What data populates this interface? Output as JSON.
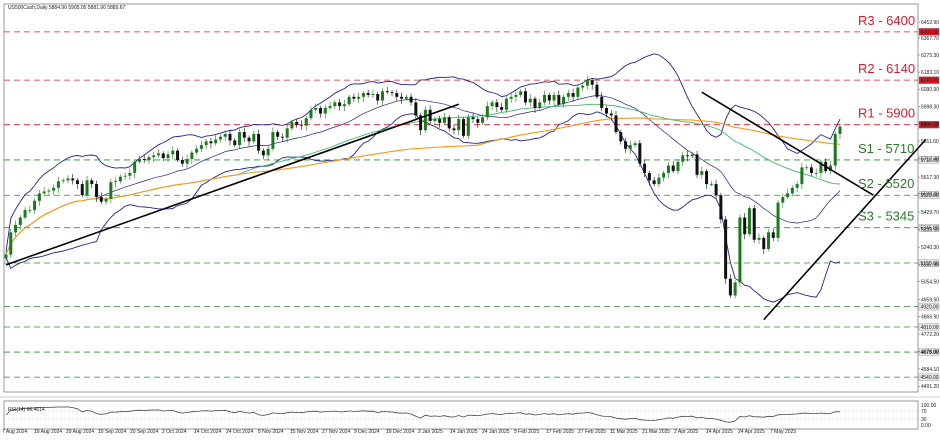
{
  "header": {
    "symbol_line": "US500Cash,Daily  5884.90 5905.05 5881.90 5889.67",
    "rsi_line": "RSI(14) 66.4614"
  },
  "colors": {
    "resistance": "#e0182b",
    "support_label": "#2a7a2a",
    "support_line": "#2f8a2f",
    "dashed_green": "#2f8a2f",
    "bull": "#1c7a1c",
    "bear": "#111111",
    "bollinger": "#22228a",
    "ma_orange": "#f39a1c",
    "ma_green": "#3fb86a",
    "trendline": "#000000",
    "rsi": "#444444"
  },
  "chart_data": [
    {
      "type": "candlestick",
      "series_name": "US500Cash, Daily",
      "ylim": [
        4460,
        6550
      ],
      "y_ticks": [
        "6452.90",
        "6367.70",
        "6275.30",
        "6183.10",
        "6090.90",
        "5998.30",
        "5904.70",
        "5811.60",
        "5717.40",
        "5617.30",
        "5529.20",
        "5429.70",
        "5335.50",
        "5240.30",
        "5147.90",
        "5054.50",
        "4959.50",
        "4866.90",
        "4772.20",
        "4678.00",
        "4584.10",
        "4491.20"
      ],
      "x_tick_labels": [
        "7 Aug 2024",
        "19 Aug 2024",
        "29 Aug 2024",
        "10 Sep 2024",
        "20 Sep 2024",
        "2 Oct 2024",
        "14 Oct 2024",
        "24 Oct 2024",
        "5 Nov 2024",
        "15 Nov 2024",
        "27 Nov 2024",
        "9 Dec 2024",
        "19 Dec 2024",
        "2 Jan 2025",
        "14 Jan 2025",
        "24 Jan 2025",
        "5 Feb 2025",
        "17 Feb 2025",
        "27 Feb 2025",
        "11 Mar 2025",
        "21 Mar 2025",
        "2 Apr 2025",
        "14 Apr 2025",
        "24 Apr 2025",
        "7 May 2025"
      ],
      "levels": [
        {
          "name": "R3 - 6400",
          "value": 6400,
          "kind": "resistance",
          "tag": "6400.00"
        },
        {
          "name": "R2 - 6140",
          "value": 6140,
          "kind": "resistance",
          "tag": "6140.00"
        },
        {
          "name": "R1 - 5900",
          "value": 5900,
          "kind": "resistance",
          "tag": "5900.00"
        },
        {
          "name": "S1 - 5710",
          "value": 5710,
          "kind": "support",
          "tag": "5710.00"
        },
        {
          "name": "S2 - 5520",
          "value": 5520,
          "kind": "support",
          "tag": "5520.00"
        },
        {
          "name": "S3 - 5345",
          "value": 5345,
          "kind": "support",
          "tag": "5345.00"
        },
        {
          "name": "",
          "value": 5155,
          "kind": "support",
          "tag": "5155.00"
        },
        {
          "name": "",
          "value": 4920,
          "kind": "support",
          "tag": "4920.00"
        },
        {
          "name": "",
          "value": 4810,
          "kind": "support",
          "tag": "4810.00"
        },
        {
          "name": "",
          "value": 4675,
          "kind": "support",
          "tag": "4675.00"
        },
        {
          "name": "",
          "value": 4540,
          "kind": "support",
          "tag": "4540.00"
        }
      ],
      "close": [
        5200,
        5320,
        5360,
        5400,
        5440,
        5440,
        5490,
        5530,
        5540,
        5545,
        5560,
        5595,
        5600,
        5610,
        5600,
        5580,
        5520,
        5600,
        5580,
        5510,
        5485,
        5500,
        5590,
        5595,
        5620,
        5625,
        5640,
        5700,
        5715,
        5710,
        5725,
        5735,
        5745,
        5720,
        5740,
        5760,
        5710,
        5690,
        5715,
        5750,
        5770,
        5790,
        5810,
        5800,
        5820,
        5835,
        5850,
        5815,
        5790,
        5860,
        5830,
        5810,
        5850,
        5760,
        5735,
        5770,
        5860,
        5835,
        5830,
        5880,
        5915,
        5900,
        5895,
        5935,
        5980,
        5990,
        5960,
        5990,
        6000,
        6020,
        6000,
        6010,
        6050,
        6040,
        6050,
        6070,
        6060,
        6065,
        6030,
        6080,
        6075,
        6070,
        6050,
        6040,
        6050,
        6020,
        5950,
        5870,
        5980,
        5920,
        5930,
        5910,
        5940,
        5880,
        5870,
        5930,
        5840,
        5940,
        5930,
        5910,
        5940,
        6000,
        6020,
        5995,
        5980,
        6040,
        6050,
        6060,
        6080,
        6020,
        6040,
        5990,
        6020,
        6060,
        6030,
        6060,
        6010,
        6050,
        6070,
        6050,
        6100,
        6110,
        6140,
        6115,
        6050,
        5990,
        5960,
        5950,
        5860,
        5810,
        5770,
        5790,
        5800,
        5690,
        5640,
        5600,
        5580,
        5615,
        5640,
        5680,
        5650,
        5700,
        5735,
        5730,
        5740,
        5630,
        5650,
        5580,
        5580,
        5520,
        5390,
        5070,
        4980,
        5050,
        5400,
        5310,
        5450,
        5280,
        5290,
        5230,
        5320,
        5290,
        5480,
        5510,
        5530,
        5560,
        5580,
        5670,
        5670,
        5640,
        5640,
        5700,
        5650,
        5680,
        5850,
        5890
      ],
      "rsi": {
        "label": "RSI(14)",
        "last": 66.4614,
        "levels": [
          30,
          70
        ],
        "ylim": [
          0,
          100
        ],
        "y_ticks": [
          "100.00",
          "70",
          "30",
          "0.00"
        ]
      },
      "indicators": [
        "Bollinger Bands",
        "Moving average (orange)",
        "Moving average (green)"
      ]
    }
  ]
}
